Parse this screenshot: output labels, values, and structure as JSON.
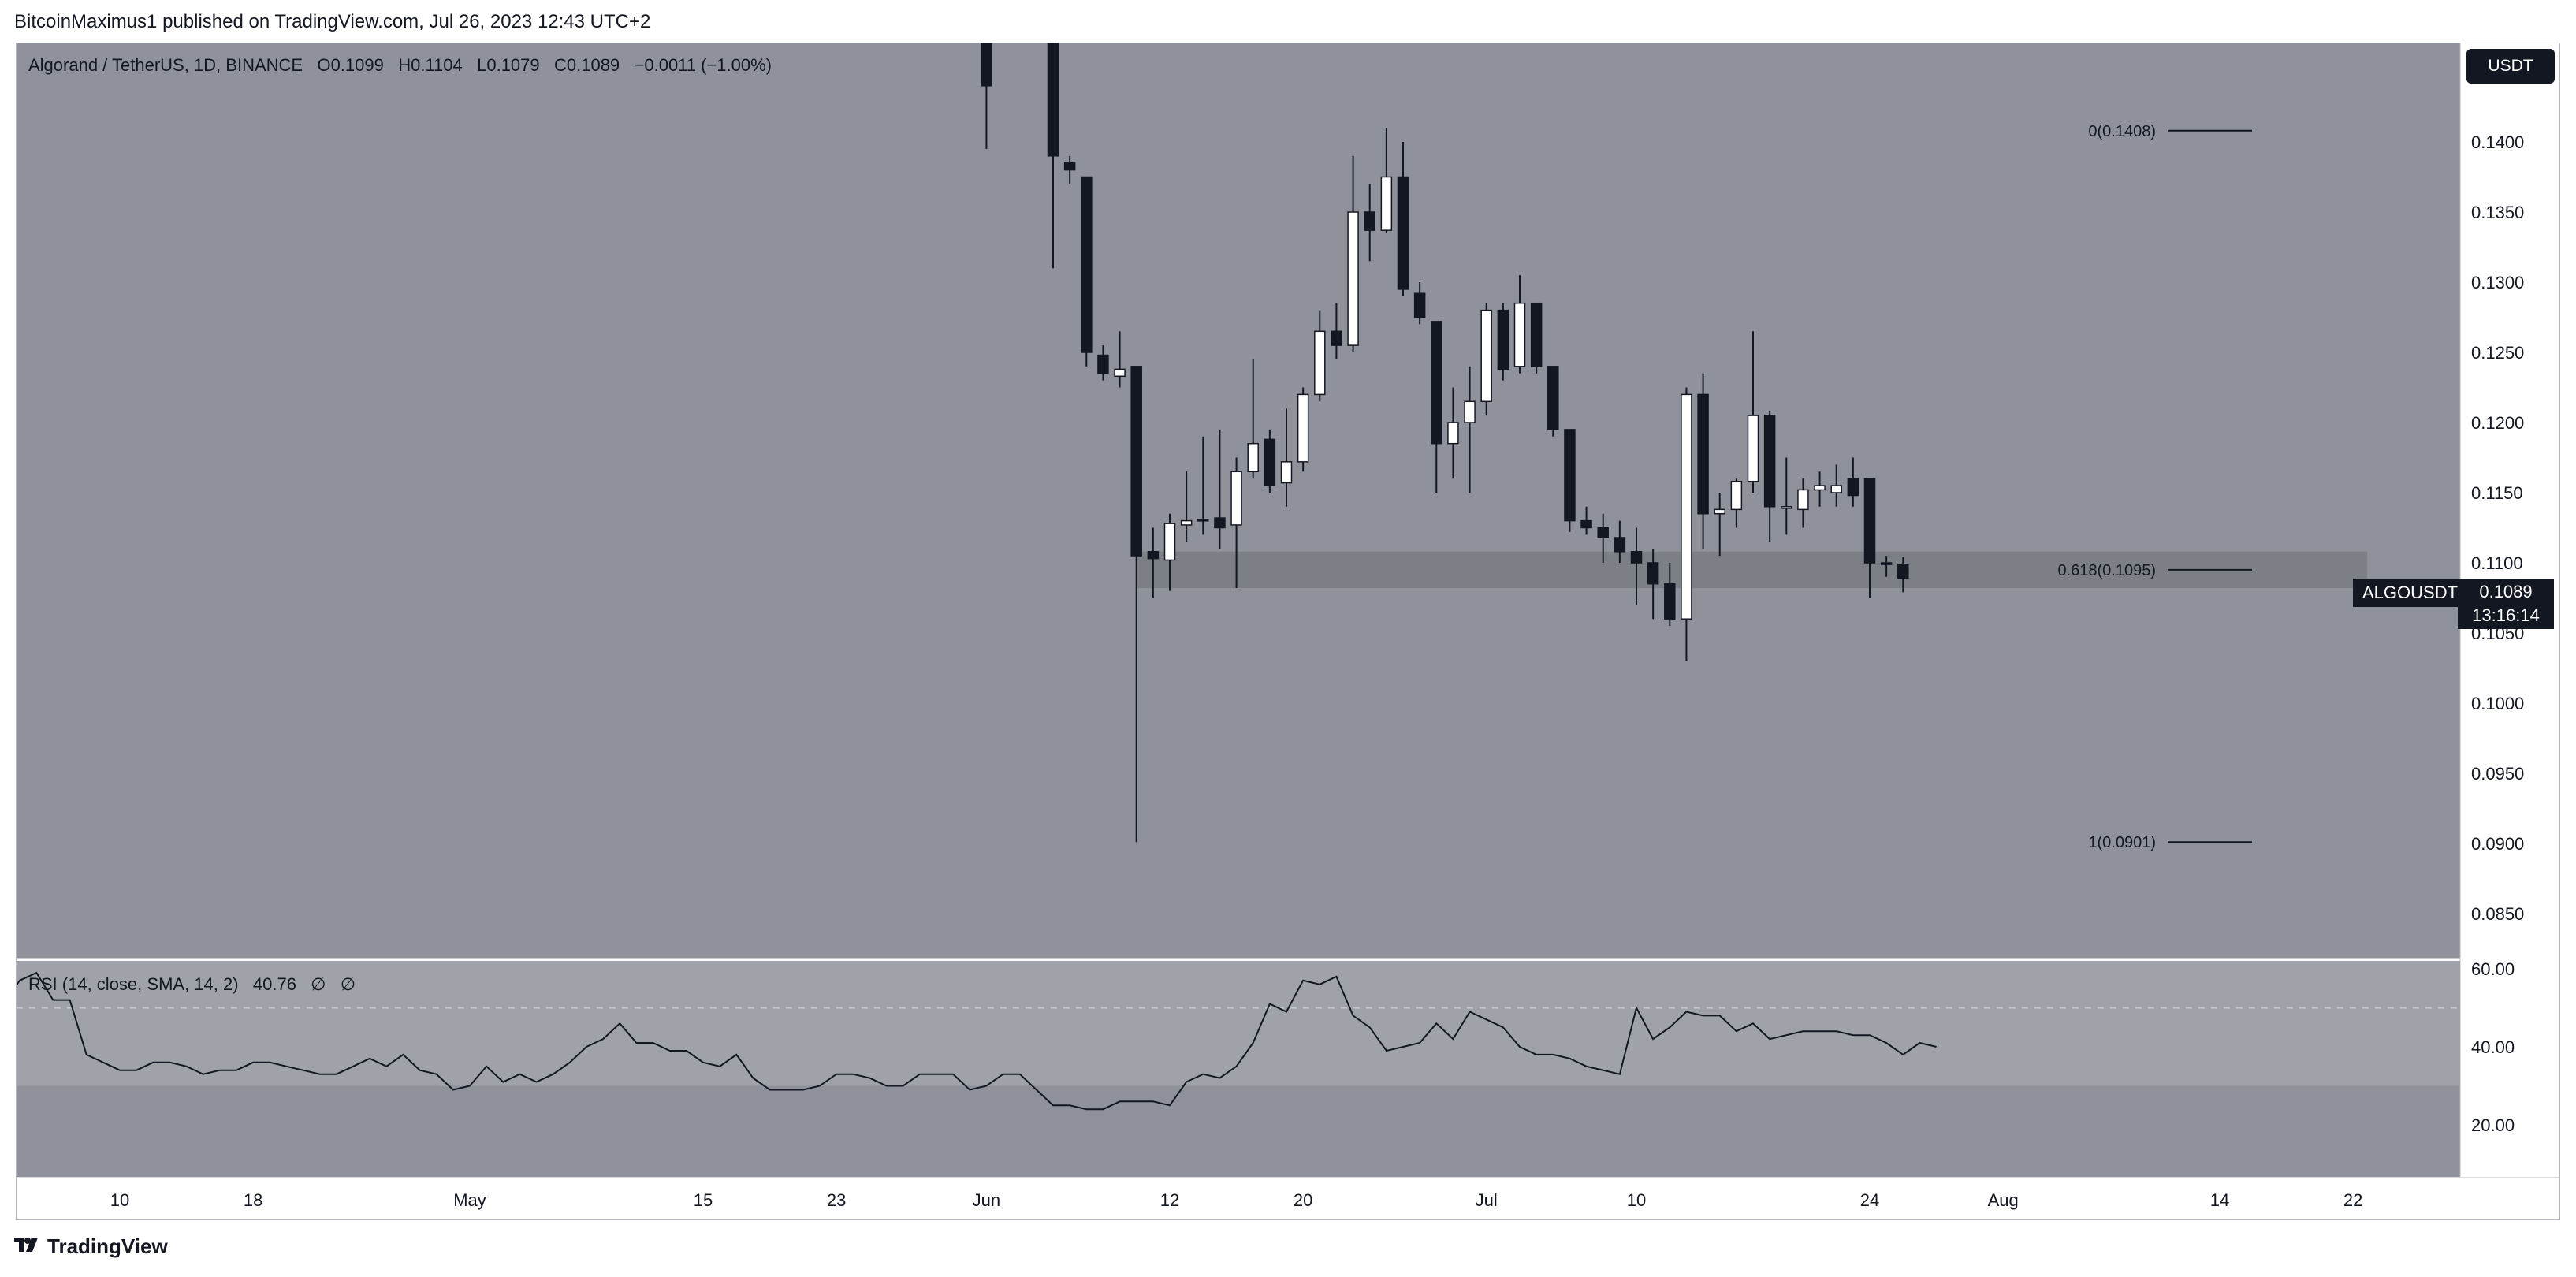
{
  "header": {
    "publisher_line": "BitcoinMaximus1 published on TradingView.com, Jul 26, 2023 12:43 UTC+2"
  },
  "legend": {
    "symbol": "Algorand / TetherUS, 1D, BINANCE",
    "open_label": "O",
    "open_value": "0.1099",
    "high_label": "H",
    "high_value": "0.1104",
    "low_label": "L",
    "low_value": "0.1079",
    "close_label": "C",
    "close_value": "0.1089",
    "change": "−0.0011 (−1.00%)"
  },
  "currency_badge": "USDT",
  "price_badge": {
    "symbol": "ALGOUSDT",
    "price": "0.1089",
    "countdown": "13:16:14"
  },
  "rsi_legend": {
    "label": "RSI (14, close, SMA, 14, 2)",
    "value": "40.76",
    "extra1": "∅",
    "extra2": "∅"
  },
  "footer": {
    "brand": "TradingView",
    "logo_icon": "tradingview-logo-icon"
  },
  "colors": {
    "pane_bg": "#8f929a",
    "up_body": "#ffffff",
    "down_body": "#131722",
    "zone": "#7c7f86",
    "rsi_band": "#9fa2a8",
    "line": "#131722"
  },
  "chart_data": [
    {
      "type": "candlestick",
      "title": "Algorand / TetherUS, 1D, BINANCE",
      "y_ticks": [
        "0.1400",
        "0.1350",
        "0.1300",
        "0.1250",
        "0.1200",
        "0.1150",
        "0.1100",
        "0.1050",
        "0.1000",
        "0.0950",
        "0.0900",
        "0.0850"
      ],
      "x_ticks": [
        "10",
        "18",
        "May",
        "15",
        "23",
        "Jun",
        "12",
        "20",
        "Jul",
        "10",
        "24",
        "Aug",
        "14",
        "22"
      ],
      "ylim": [
        0.0835,
        0.144
      ],
      "support_zone": [
        0.1082,
        0.1108
      ],
      "fib_levels": [
        {
          "label": "0(0.1408)",
          "value": 0.1408
        },
        {
          "label": "0.618(0.1095)",
          "value": 0.1095
        },
        {
          "label": "1(0.0901)",
          "value": 0.0901
        }
      ],
      "candles": [
        {
          "date": "2023-06-01",
          "o": 0.15,
          "h": 0.15,
          "l": 0.1395,
          "c": 0.144
        },
        {
          "date": "2023-06-05",
          "o": 0.15,
          "h": 0.15,
          "l": 0.131,
          "c": 0.139
        },
        {
          "date": "2023-06-06",
          "o": 0.1385,
          "h": 0.139,
          "l": 0.137,
          "c": 0.138
        },
        {
          "date": "2023-06-07",
          "o": 0.1375,
          "h": 0.1375,
          "l": 0.124,
          "c": 0.125
        },
        {
          "date": "2023-06-08",
          "o": 0.1248,
          "h": 0.1255,
          "l": 0.123,
          "c": 0.1235
        },
        {
          "date": "2023-06-09",
          "o": 0.1233,
          "h": 0.1265,
          "l": 0.1225,
          "c": 0.1238
        },
        {
          "date": "2023-06-10",
          "o": 0.124,
          "h": 0.124,
          "l": 0.0901,
          "c": 0.1105
        },
        {
          "date": "2023-06-11",
          "o": 0.1108,
          "h": 0.1125,
          "l": 0.1075,
          "c": 0.1103
        },
        {
          "date": "2023-06-12",
          "o": 0.1102,
          "h": 0.1135,
          "l": 0.108,
          "c": 0.1128
        },
        {
          "date": "2023-06-13",
          "o": 0.1127,
          "h": 0.1165,
          "l": 0.1115,
          "c": 0.113
        },
        {
          "date": "2023-06-14",
          "o": 0.1131,
          "h": 0.119,
          "l": 0.112,
          "c": 0.113
        },
        {
          "date": "2023-06-15",
          "o": 0.1132,
          "h": 0.1195,
          "l": 0.111,
          "c": 0.1125
        },
        {
          "date": "2023-06-16",
          "o": 0.1127,
          "h": 0.1175,
          "l": 0.1082,
          "c": 0.1165
        },
        {
          "date": "2023-06-17",
          "o": 0.1165,
          "h": 0.1245,
          "l": 0.116,
          "c": 0.1185
        },
        {
          "date": "2023-06-18",
          "o": 0.1188,
          "h": 0.1195,
          "l": 0.115,
          "c": 0.1155
        },
        {
          "date": "2023-06-19",
          "o": 0.1157,
          "h": 0.121,
          "l": 0.114,
          "c": 0.1172
        },
        {
          "date": "2023-06-20",
          "o": 0.1172,
          "h": 0.1225,
          "l": 0.1165,
          "c": 0.122
        },
        {
          "date": "2023-06-21",
          "o": 0.122,
          "h": 0.128,
          "l": 0.1215,
          "c": 0.1265
        },
        {
          "date": "2023-06-22",
          "o": 0.1265,
          "h": 0.1285,
          "l": 0.1245,
          "c": 0.1255
        },
        {
          "date": "2023-06-23",
          "o": 0.1255,
          "h": 0.139,
          "l": 0.125,
          "c": 0.135
        },
        {
          "date": "2023-06-24",
          "o": 0.135,
          "h": 0.137,
          "l": 0.1315,
          "c": 0.1337
        },
        {
          "date": "2023-06-25",
          "o": 0.1337,
          "h": 0.141,
          "l": 0.1335,
          "c": 0.1375
        },
        {
          "date": "2023-06-26",
          "o": 0.1375,
          "h": 0.14,
          "l": 0.129,
          "c": 0.1295
        },
        {
          "date": "2023-06-27",
          "o": 0.1292,
          "h": 0.13,
          "l": 0.127,
          "c": 0.1275
        },
        {
          "date": "2023-06-28",
          "o": 0.1272,
          "h": 0.1272,
          "l": 0.115,
          "c": 0.1185
        },
        {
          "date": "2023-06-29",
          "o": 0.1185,
          "h": 0.1225,
          "l": 0.116,
          "c": 0.12
        },
        {
          "date": "2023-06-30",
          "o": 0.12,
          "h": 0.124,
          "l": 0.115,
          "c": 0.1215
        },
        {
          "date": "2023-07-01",
          "o": 0.1215,
          "h": 0.1285,
          "l": 0.1205,
          "c": 0.128
        },
        {
          "date": "2023-07-02",
          "o": 0.128,
          "h": 0.1285,
          "l": 0.123,
          "c": 0.1238
        },
        {
          "date": "2023-07-03",
          "o": 0.124,
          "h": 0.1305,
          "l": 0.1235,
          "c": 0.1285
        },
        {
          "date": "2023-07-04",
          "o": 0.1285,
          "h": 0.1285,
          "l": 0.1235,
          "c": 0.124
        },
        {
          "date": "2023-07-05",
          "o": 0.124,
          "h": 0.124,
          "l": 0.119,
          "c": 0.1195
        },
        {
          "date": "2023-07-06",
          "o": 0.1195,
          "h": 0.1195,
          "l": 0.1122,
          "c": 0.113
        },
        {
          "date": "2023-07-07",
          "o": 0.113,
          "h": 0.114,
          "l": 0.112,
          "c": 0.1125
        },
        {
          "date": "2023-07-08",
          "o": 0.1125,
          "h": 0.1135,
          "l": 0.11,
          "c": 0.1118
        },
        {
          "date": "2023-07-09",
          "o": 0.1118,
          "h": 0.113,
          "l": 0.11,
          "c": 0.1108
        },
        {
          "date": "2023-07-10",
          "o": 0.1108,
          "h": 0.1125,
          "l": 0.107,
          "c": 0.11
        },
        {
          "date": "2023-07-11",
          "o": 0.11,
          "h": 0.111,
          "l": 0.106,
          "c": 0.1085
        },
        {
          "date": "2023-07-12",
          "o": 0.1085,
          "h": 0.11,
          "l": 0.1055,
          "c": 0.106
        },
        {
          "date": "2023-07-13",
          "o": 0.106,
          "h": 0.1225,
          "l": 0.103,
          "c": 0.122
        },
        {
          "date": "2023-07-14",
          "o": 0.122,
          "h": 0.1235,
          "l": 0.111,
          "c": 0.1135
        },
        {
          "date": "2023-07-15",
          "o": 0.1135,
          "h": 0.115,
          "l": 0.1105,
          "c": 0.1138
        },
        {
          "date": "2023-07-16",
          "o": 0.1138,
          "h": 0.116,
          "l": 0.1125,
          "c": 0.1158
        },
        {
          "date": "2023-07-17",
          "o": 0.1158,
          "h": 0.1265,
          "l": 0.115,
          "c": 0.1205
        },
        {
          "date": "2023-07-18",
          "o": 0.1205,
          "h": 0.1208,
          "l": 0.1115,
          "c": 0.114
        },
        {
          "date": "2023-07-19",
          "o": 0.114,
          "h": 0.1175,
          "l": 0.112,
          "c": 0.114
        },
        {
          "date": "2023-07-20",
          "o": 0.1138,
          "h": 0.116,
          "l": 0.1125,
          "c": 0.1152
        },
        {
          "date": "2023-07-21",
          "o": 0.1152,
          "h": 0.1165,
          "l": 0.114,
          "c": 0.1155
        },
        {
          "date": "2023-07-22",
          "o": 0.115,
          "h": 0.117,
          "l": 0.114,
          "c": 0.1155
        },
        {
          "date": "2023-07-23",
          "o": 0.116,
          "h": 0.1175,
          "l": 0.114,
          "c": 0.1148
        },
        {
          "date": "2023-07-24",
          "o": 0.116,
          "h": 0.116,
          "l": 0.1075,
          "c": 0.11
        },
        {
          "date": "2023-07-25",
          "o": 0.11,
          "h": 0.1105,
          "l": 0.109,
          "c": 0.1099
        },
        {
          "date": "2023-07-26",
          "o": 0.1099,
          "h": 0.1104,
          "l": 0.1079,
          "c": 0.1089
        }
      ]
    },
    {
      "type": "line",
      "title": "RSI (14, close, SMA, 14, 2)",
      "y_ticks": [
        "60.00",
        "40.00",
        "20.00"
      ],
      "ylim": [
        7,
        62
      ],
      "band": [
        30,
        70
      ],
      "dashed_level": 50,
      "series": [
        {
          "values": [
            51,
            53,
            53,
            50,
            51,
            49,
            49,
            51,
            51,
            54,
            51,
            57,
            59,
            52,
            52,
            38,
            36,
            34,
            34,
            36,
            36,
            35,
            33,
            34,
            34,
            36,
            36,
            35,
            34,
            33,
            33,
            35,
            37,
            35,
            38,
            34,
            33,
            29,
            30,
            35,
            31,
            33,
            31,
            33,
            36,
            40,
            42,
            46,
            41,
            41,
            39,
            39,
            36,
            35,
            38,
            32,
            29,
            29,
            29,
            30,
            33,
            33,
            32,
            30,
            30,
            33,
            33,
            33,
            29,
            30,
            33,
            33,
            29,
            25,
            25,
            24,
            24,
            26,
            26,
            26,
            25,
            31,
            33,
            32,
            35,
            41,
            51,
            49,
            57,
            56,
            58,
            48,
            45,
            39,
            40,
            41,
            46,
            42,
            49,
            47,
            45,
            40,
            38,
            38,
            37,
            35,
            34,
            33,
            50,
            42,
            45,
            49,
            48,
            48,
            44,
            46,
            42,
            43,
            44,
            44,
            44,
            43,
            43,
            41,
            38,
            41,
            40
          ]
        }
      ]
    }
  ]
}
